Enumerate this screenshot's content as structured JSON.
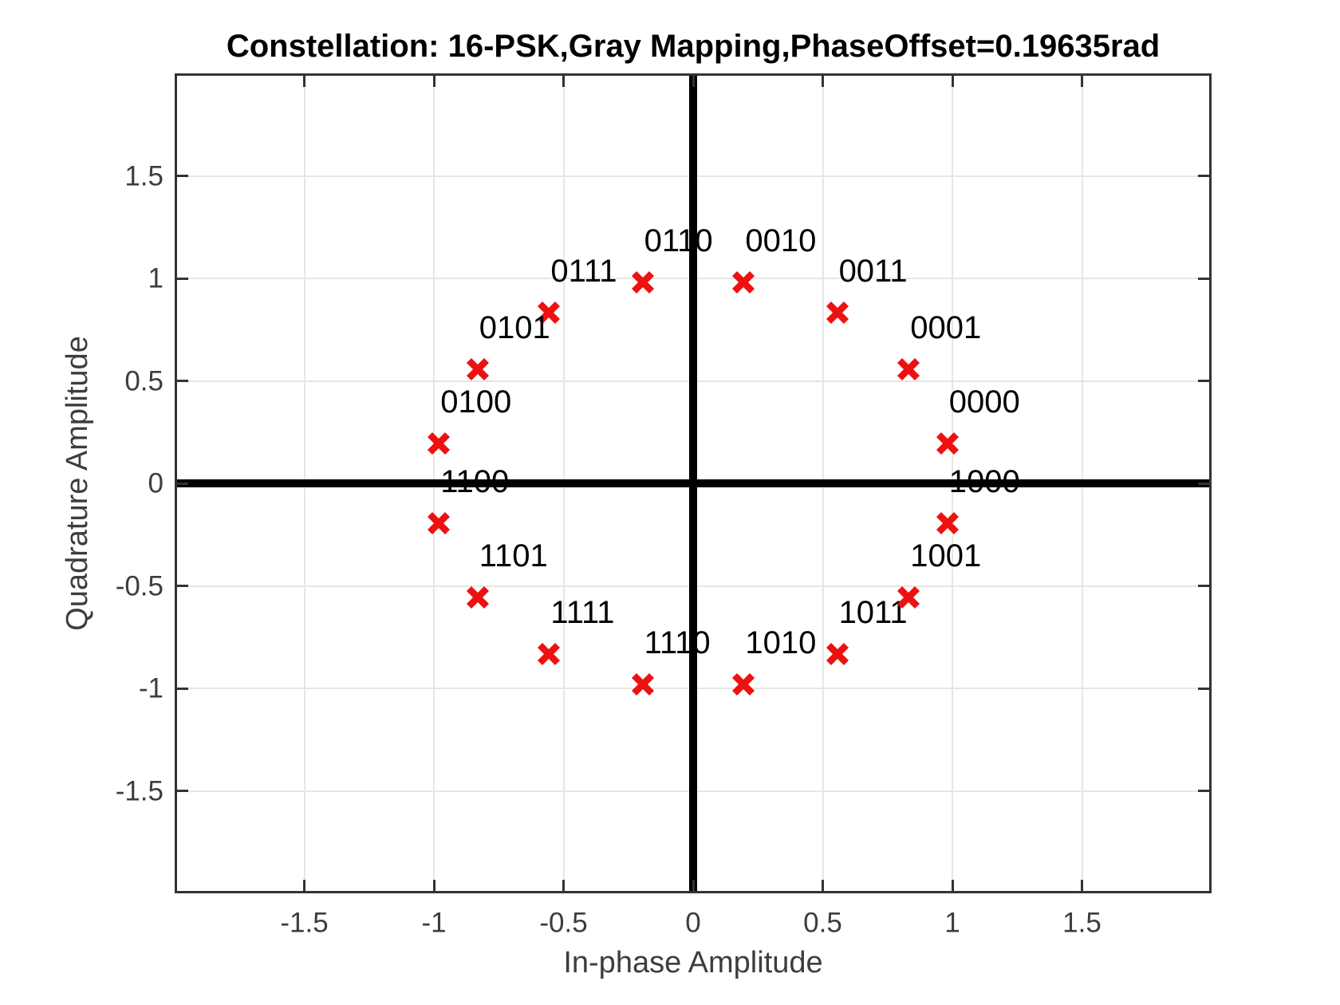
{
  "chart_data": {
    "type": "scatter",
    "title": "Constellation: 16-PSK,Gray Mapping,PhaseOffset=0.19635rad",
    "xlabel": "In-phase Amplitude",
    "ylabel": "Quadrature Amplitude",
    "xlim": [
      -2,
      2
    ],
    "ylim": [
      -2,
      2
    ],
    "xtick_values": [
      -1.5,
      -1,
      -0.5,
      0,
      0.5,
      1,
      1.5
    ],
    "xtick_labels": [
      "-1.5",
      "-1",
      "-0.5",
      "0",
      "0.5",
      "1",
      "1.5"
    ],
    "ytick_values": [
      -1.5,
      -1,
      -0.5,
      0,
      0.5,
      1,
      1.5
    ],
    "ytick_labels": [
      "-1.5",
      "-1",
      "-0.5",
      "0",
      "0.5",
      "1",
      "1.5"
    ],
    "grid": true,
    "legend": "none",
    "marker": {
      "shape": "x",
      "color": "#ee1111"
    },
    "colors": {
      "grid": "#e6e6e6",
      "axis_box": "#333333",
      "zero_lines": "#000000",
      "tick_text": "#3d3d3d",
      "axis_label_text": "#3d3d3d",
      "title_text": "#000000",
      "symbol_label_text": "#000000",
      "background": "#ffffff"
    },
    "points": [
      {
        "label": "0000",
        "x": 0.9808,
        "y": 0.1951
      },
      {
        "label": "0001",
        "x": 0.8315,
        "y": 0.5556
      },
      {
        "label": "0011",
        "x": 0.5556,
        "y": 0.8315
      },
      {
        "label": "0010",
        "x": 0.1951,
        "y": 0.9808
      },
      {
        "label": "0110",
        "x": -0.1951,
        "y": 0.9808
      },
      {
        "label": "0111",
        "x": -0.5556,
        "y": 0.8315
      },
      {
        "label": "0101",
        "x": -0.8315,
        "y": 0.5556
      },
      {
        "label": "0100",
        "x": -0.9808,
        "y": 0.1951
      },
      {
        "label": "1100",
        "x": -0.9808,
        "y": -0.1951
      },
      {
        "label": "1101",
        "x": -0.8315,
        "y": -0.5556
      },
      {
        "label": "1111",
        "x": -0.5556,
        "y": -0.8315
      },
      {
        "label": "1110",
        "x": -0.1951,
        "y": -0.9808
      },
      {
        "label": "1010",
        "x": 0.1951,
        "y": -0.9808
      },
      {
        "label": "1011",
        "x": 0.5556,
        "y": -0.8315
      },
      {
        "label": "1001",
        "x": 0.8315,
        "y": -0.5556
      },
      {
        "label": "1000",
        "x": 0.9808,
        "y": -0.1951
      }
    ]
  }
}
